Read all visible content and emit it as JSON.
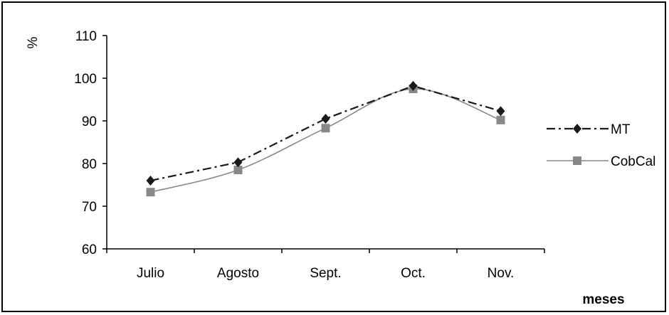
{
  "chart_data": {
    "type": "line",
    "categories": [
      "Julio",
      "Agosto",
      "Sept.",
      "Oct.",
      "Nov."
    ],
    "series": [
      {
        "name": "MT",
        "values": [
          76,
          80.3,
          90.5,
          98.2,
          92.3
        ],
        "color": "#1a1a1a",
        "marker": "diamond",
        "line_style": "dash-dot",
        "smooth": false
      },
      {
        "name": "CobCal",
        "values": [
          73.3,
          78.5,
          88.3,
          97.5,
          90.2
        ],
        "color": "#888888",
        "marker": "square",
        "line_style": "solid",
        "smooth": true
      }
    ],
    "ylabel": "%",
    "xlabel": "meses",
    "ylim": [
      60,
      110
    ],
    "yticks": [
      "60",
      "70",
      "80",
      "90",
      "100",
      "110"
    ],
    "grid": false,
    "legend_position": "right"
  }
}
